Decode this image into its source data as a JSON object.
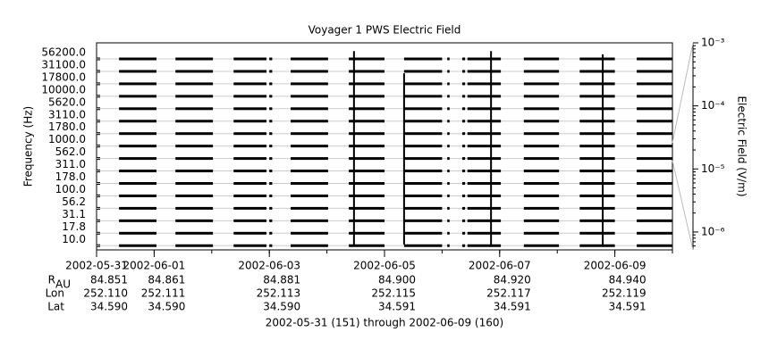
{
  "chart_data": {
    "type": "channel-traces",
    "title": "Voyager 1 PWS Electric Field",
    "ylabel": "Frequency (Hz)",
    "y2label": "Electric Field (V/m)",
    "footer": "2002-05-31 (151) through 2002-06-09 (160)",
    "xlim": [
      0,
      10
    ],
    "xticks": [
      {
        "value": 0,
        "label": "2002-05-31"
      },
      {
        "value": 1,
        "label": "2002-06-01"
      },
      {
        "value": 3,
        "label": "2002-06-03"
      },
      {
        "value": 5,
        "label": "2002-06-05"
      },
      {
        "value": 7,
        "label": "2002-06-07"
      },
      {
        "value": 9,
        "label": "2002-06-09"
      }
    ],
    "channels": [
      {
        "value": 56200,
        "label": "56200.0"
      },
      {
        "value": 31100,
        "label": "31100.0"
      },
      {
        "value": 17800,
        "label": "17800.0"
      },
      {
        "value": 10000,
        "label": "10000.0"
      },
      {
        "value": 5620,
        "label": "5620.0"
      },
      {
        "value": 3110,
        "label": "3110.0"
      },
      {
        "value": 1780,
        "label": "1780.0"
      },
      {
        "value": 1000,
        "label": "1000.0"
      },
      {
        "value": 562,
        "label": "562.0"
      },
      {
        "value": 311,
        "label": "311.0"
      },
      {
        "value": 178,
        "label": "178.0"
      },
      {
        "value": 100,
        "label": "100.0"
      },
      {
        "value": 56.2,
        "label": "56.2"
      },
      {
        "value": 31.1,
        "label": "31.1"
      },
      {
        "value": 17.8,
        "label": "17.8"
      },
      {
        "value": 10,
        "label": "10.0"
      }
    ],
    "segments": [
      [
        0.39,
        1.04
      ],
      [
        1.37,
        2.02
      ],
      [
        2.38,
        2.95
      ],
      [
        3.0,
        3.05
      ],
      [
        3.37,
        4.02
      ],
      [
        4.38,
        5.0
      ],
      [
        5.34,
        6.0
      ],
      [
        6.09,
        6.13
      ],
      [
        6.35,
        6.4
      ],
      [
        6.44,
        7.02
      ],
      [
        7.42,
        8.03
      ],
      [
        8.39,
        9.0
      ],
      [
        9.38,
        10
      ]
    ],
    "spikes": {
      "x": [
        4.47,
        5.34,
        6.85,
        8.79
      ],
      "values": [
        0.0009,
        0.0004,
        0.0009,
        0.0008
      ]
    },
    "y2lim": [
      5.2e-07,
      0.001
    ],
    "y2ticks": [
      {
        "value": 0.001,
        "label": "10⁻³"
      },
      {
        "value": 0.0001,
        "label": "10⁻⁴"
      },
      {
        "value": 1e-05,
        "label": "10⁻⁵"
      },
      {
        "value": 1e-06,
        "label": "10⁻⁶"
      }
    ],
    "y2log": true,
    "color": "#000000",
    "ephemeris": [
      {
        "label": "R",
        "sub": "AU",
        "values": [
          84.851,
          84.861,
          84.881,
          84.9,
          84.92,
          84.94
        ],
        "value_labels": [
          "84.851",
          "84.861",
          "84.881",
          "84.900",
          "84.920",
          "84.940"
        ]
      },
      {
        "label": "Lon",
        "values": [
          252.11,
          252.111,
          252.113,
          252.115,
          252.117,
          252.119
        ],
        "value_labels": [
          "252.110",
          "252.111",
          "252.113",
          "252.115",
          "252.117",
          "252.119"
        ]
      },
      {
        "label": "Lat",
        "values": [
          34.59,
          34.59,
          34.59,
          34.591,
          34.591,
          34.591
        ],
        "value_labels": [
          "34.590",
          "34.590",
          "34.590",
          "34.591",
          "34.591",
          "34.591"
        ]
      }
    ]
  }
}
